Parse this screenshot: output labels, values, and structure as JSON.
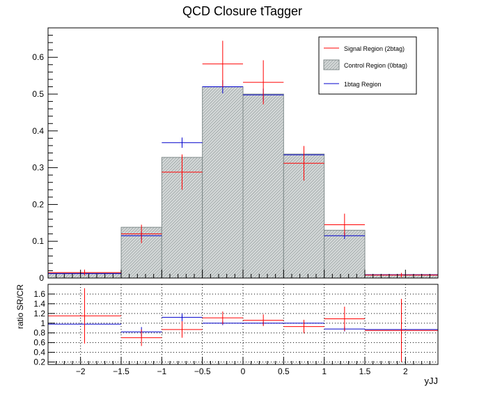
{
  "colors": {
    "signal": "#ff0000",
    "control_fill": "#c8cdcd",
    "control_hatch": "#7f8a8a",
    "onebtag": "#0000cc",
    "frame": "#000000"
  },
  "chart_data": [
    {
      "type": "bar",
      "title": "QCD Closure tTagger",
      "xlabel": "",
      "ylabel": "",
      "xlim": [
        -2.4,
        2.4
      ],
      "ylim": [
        0,
        0.68
      ],
      "grid": false,
      "legend_position": "top-right",
      "bin_edges": [
        -2.4,
        -1.5,
        -1.0,
        -0.5,
        0.0,
        0.5,
        1.0,
        1.5,
        2.4
      ],
      "x_ticks": [
        -2,
        -1.5,
        -1,
        -0.5,
        0,
        0.5,
        1,
        1.5,
        2
      ],
      "y_ticks": [
        0,
        0.1,
        0.2,
        0.3,
        0.4,
        0.5,
        0.6
      ],
      "y_tick_labels": [
        "0",
        "0.1",
        "0.2",
        "0.3",
        "0.4",
        "0.5",
        "0.6"
      ],
      "series": [
        {
          "name": "Signal Region (2btag)",
          "style": "points-with-errors",
          "values": [
            0.015,
            0.12,
            0.288,
            0.582,
            0.532,
            0.312,
            0.145,
            0.008
          ],
          "errors": [
            0.008,
            0.025,
            0.048,
            0.063,
            0.06,
            0.047,
            0.03,
            0.006
          ]
        },
        {
          "name": "Control Region (0btag)",
          "style": "hatched-histogram",
          "values": [
            0.013,
            0.138,
            0.328,
            0.52,
            0.5,
            0.337,
            0.13,
            0.009
          ]
        },
        {
          "name": "1btag Region",
          "style": "points-with-errors",
          "values": [
            0.012,
            0.115,
            0.368,
            0.52,
            0.498,
            0.335,
            0.115,
            0.009
          ],
          "errors": [
            0.004,
            0.011,
            0.014,
            0.018,
            0.017,
            0.014,
            0.009,
            0.003
          ]
        }
      ]
    },
    {
      "type": "bar",
      "title": "",
      "xlabel": "yJJ",
      "ylabel": "ratio SR/CR",
      "xlim": [
        -2.4,
        2.4
      ],
      "ylim": [
        0.15,
        1.8
      ],
      "grid": true,
      "bin_edges": [
        -2.4,
        -1.5,
        -1.0,
        -0.5,
        0.0,
        0.5,
        1.0,
        1.5,
        2.4
      ],
      "x_ticks": [
        -2,
        -1.5,
        -1,
        -0.5,
        0,
        0.5,
        1,
        1.5,
        2
      ],
      "x_tick_labels": [
        "−2",
        "−1.5",
        "−1",
        "−0.5",
        "0",
        "0.5",
        "1",
        "1.5",
        "2"
      ],
      "y_ticks": [
        0.2,
        0.4,
        0.6,
        0.8,
        1,
        1.2,
        1.4,
        1.6
      ],
      "y_tick_labels": [
        "0.2",
        "0.4",
        "0.6",
        "0.8",
        "1",
        "1.2",
        "1.4",
        "1.6"
      ],
      "series": [
        {
          "name": "Signal Region (2btag)",
          "style": "points-with-errors",
          "values": [
            1.15,
            0.7,
            0.87,
            1.11,
            1.06,
            0.93,
            1.09,
            0.85
          ],
          "errors": [
            0.57,
            0.17,
            0.17,
            0.13,
            0.12,
            0.14,
            0.25,
            0.65
          ]
        },
        {
          "name": "1btag Region",
          "style": "points-with-errors",
          "values": [
            0.98,
            0.82,
            1.12,
            1.0,
            1.0,
            1.0,
            0.88,
            0.87
          ],
          "errors": [
            0.3,
            0.1,
            0.08,
            0.04,
            0.04,
            0.06,
            0.05,
            0.45
          ]
        }
      ]
    }
  ]
}
